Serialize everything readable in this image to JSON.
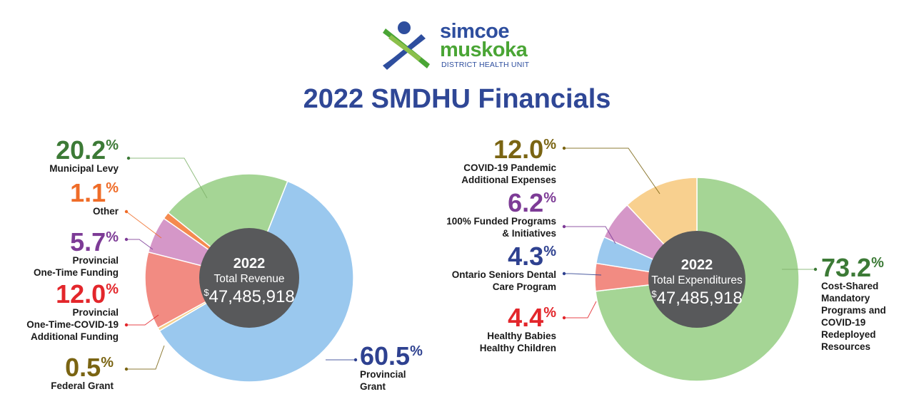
{
  "logo": {
    "line1": "simcoe",
    "line2": "muskoka",
    "line3": "DISTRICT HEALTH UNIT"
  },
  "title": "2022 SMDHU Financials",
  "chart_data": [
    {
      "type": "pie",
      "center": {
        "year": "2022",
        "label": "Total Revenue",
        "currency": "$",
        "amount": "47,485,918"
      },
      "slices": [
        {
          "name": "Provincial Grant",
          "lines": [
            "Provincial",
            "Grant"
          ],
          "value": 60.5,
          "pct": "60.5",
          "color": "#9ac8ee",
          "pct_color": "#2e4190"
        },
        {
          "name": "Federal Grant",
          "lines": [
            "Federal Grant"
          ],
          "value": 0.5,
          "pct": "0.5",
          "color": "#f5d08c",
          "pct_color": "#7a6412"
        },
        {
          "name": "Provincial One-Time-COVID-19 Additional Funding",
          "lines": [
            "Provincial",
            "One-Time-COVID-19",
            "Additional Funding"
          ],
          "value": 12.0,
          "pct": "12.0",
          "color": "#f28b82",
          "pct_color": "#e3262b"
        },
        {
          "name": "Provincial One-Time Funding",
          "lines": [
            "Provincial",
            "One-Time Funding"
          ],
          "value": 5.7,
          "pct": "5.7",
          "color": "#d597c8",
          "pct_color": "#7d3b96"
        },
        {
          "name": "Other",
          "lines": [
            "Other"
          ],
          "value": 1.1,
          "pct": "1.1",
          "color": "#f58a4f",
          "pct_color": "#ef6c28"
        },
        {
          "name": "Municipal Levy",
          "lines": [
            "Municipal Levy"
          ],
          "value": 20.2,
          "pct": "20.2",
          "color": "#a5d595",
          "pct_color": "#3c7a36"
        }
      ]
    },
    {
      "type": "pie",
      "center": {
        "year": "2022",
        "label": "Total Expenditures",
        "currency": "$",
        "amount": "47,485,918"
      },
      "slices": [
        {
          "name": "Cost-Shared Mandatory Programs and COVID-19 Redeployed Resources",
          "lines": [
            "Cost-Shared",
            "Mandatory",
            "Programs and",
            "COVID-19",
            "Redeployed",
            "Resources"
          ],
          "value": 73.2,
          "pct": "73.2",
          "color": "#a5d595",
          "pct_color": "#3c7a36"
        },
        {
          "name": "Healthy Babies Healthy Children",
          "lines": [
            "Healthy Babies",
            "Healthy Children"
          ],
          "value": 4.4,
          "pct": "4.4",
          "color": "#f28b82",
          "pct_color": "#e3262b"
        },
        {
          "name": "Ontario Seniors Dental Care Program",
          "lines": [
            "Ontario Seniors Dental",
            "Care Program"
          ],
          "value": 4.3,
          "pct": "4.3",
          "color": "#9ac8ee",
          "pct_color": "#2e4190"
        },
        {
          "name": "100% Funded Programs & Initiatives",
          "lines": [
            "100% Funded Programs",
            "& Initiatives"
          ],
          "value": 6.2,
          "pct": "6.2",
          "color": "#d597c8",
          "pct_color": "#7d3b96"
        },
        {
          "name": "COVID-19 Pandemic Additional Expenses",
          "lines": [
            "COVID-19 Pandemic",
            "Additional Expenses"
          ],
          "value": 12.0,
          "pct": "12.0",
          "color": "#f8d08f",
          "pct_color": "#7a6412"
        }
      ]
    }
  ],
  "colors": {
    "center_disc": "#58595b",
    "leader_line": "#8a8a8a",
    "title": "#2f4796"
  }
}
